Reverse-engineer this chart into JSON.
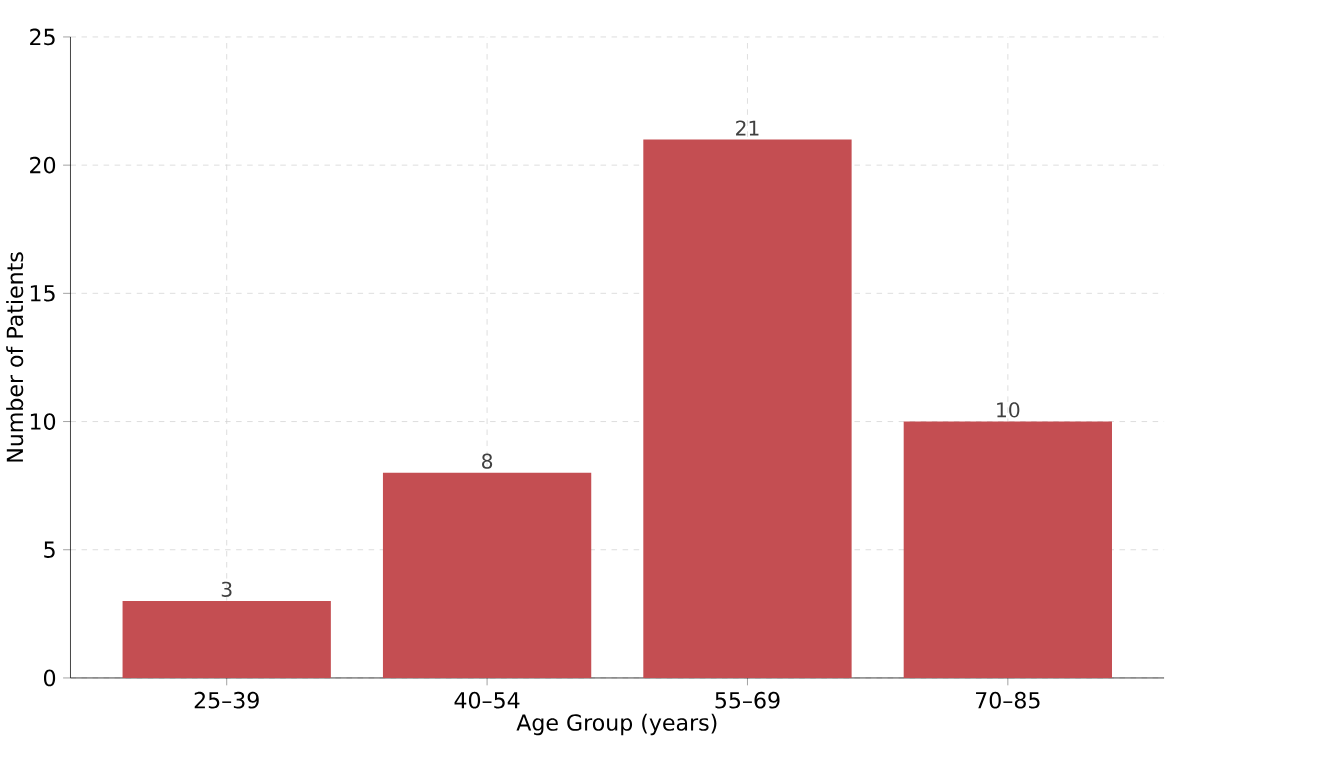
{
  "chart_data": {
    "type": "bar",
    "xlabel": "Age Group (years)",
    "ylabel": "Number of Patients",
    "categories": [
      "25–39",
      "40–54",
      "55–69",
      "70–85"
    ],
    "values": [
      3,
      8,
      21,
      10
    ],
    "color": "#c44e52",
    "ylim": [
      0,
      25
    ],
    "yticks": [
      0,
      5,
      10,
      15,
      20,
      25
    ],
    "grid": true,
    "data_labels": true
  }
}
